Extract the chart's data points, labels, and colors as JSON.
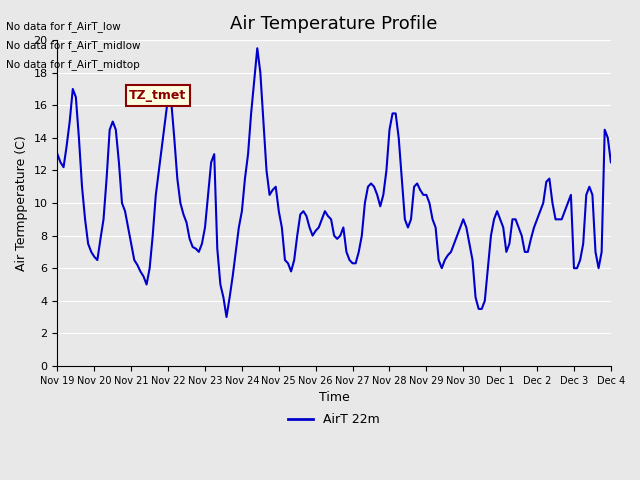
{
  "title": "Air Temperature Profile",
  "xlabel": "Time",
  "ylabel": "Air Termpperature (C)",
  "line_color": "#0000CC",
  "line_width": 1.5,
  "ylim": [
    0,
    20
  ],
  "yticks": [
    0,
    2,
    4,
    6,
    8,
    10,
    12,
    14,
    16,
    18,
    20
  ],
  "background_color": "#E8E8E8",
  "plot_bg_color": "#E8E8E8",
  "legend_label": "AirT 22m",
  "annotations_top": [
    "No data for f_AirT_low",
    "No data for f_AirT_midlow",
    "No data for f_AirT_midtop"
  ],
  "annotation_box_text": "TZ_tmet",
  "xtick_labels": [
    "Nov 19",
    "Nov 20",
    "Nov 21",
    "Nov 22",
    "Nov 23",
    "Nov 24",
    "Nov 25",
    "Nov 26",
    "Nov 27",
    "Nov 28",
    "Nov 29",
    "Nov 30",
    "Dec 1",
    "Dec 2",
    "Dec 3",
    "Dec 4"
  ],
  "x_values": [
    0,
    0.083,
    0.167,
    0.25,
    0.333,
    0.417,
    0.5,
    0.583,
    0.667,
    0.75,
    0.833,
    0.917,
    1.0,
    1.083,
    1.167,
    1.25,
    1.333,
    1.417,
    1.5,
    1.583,
    1.667,
    1.75,
    1.833,
    1.917,
    2.0,
    2.083,
    2.167,
    2.25,
    2.333,
    2.417,
    2.5,
    2.583,
    2.667,
    2.75,
    2.833,
    2.917,
    3.0,
    3.083,
    3.167,
    3.25,
    3.333,
    3.417,
    3.5,
    3.583,
    3.667,
    3.75,
    3.833,
    3.917,
    4.0,
    4.083,
    4.167,
    4.25,
    4.333,
    4.417,
    4.5,
    4.583,
    4.667,
    4.75,
    4.833,
    4.917,
    5.0,
    5.083,
    5.167,
    5.25,
    5.333,
    5.417,
    5.5,
    5.583,
    5.667,
    5.75,
    5.833,
    5.917,
    6.0,
    6.083,
    6.167,
    6.25,
    6.333,
    6.417,
    6.5,
    6.583,
    6.667,
    6.75,
    6.833,
    6.917,
    7.0,
    7.083,
    7.167,
    7.25,
    7.333,
    7.417,
    7.5,
    7.583,
    7.667,
    7.75,
    7.833,
    7.917,
    8.0,
    8.083,
    8.167,
    8.25,
    8.333,
    8.417,
    8.5,
    8.583,
    8.667,
    8.75,
    8.833,
    8.917,
    9.0,
    9.083,
    9.167,
    9.25,
    9.333,
    9.417,
    9.5,
    9.583,
    9.667,
    9.75,
    9.833,
    9.917,
    10.0,
    10.083,
    10.167,
    10.25,
    10.333,
    10.417,
    10.5,
    10.583,
    10.667,
    10.75,
    10.833,
    10.917,
    11.0,
    11.083,
    11.167,
    11.25,
    11.333,
    11.417,
    11.5,
    11.583,
    11.667,
    11.75,
    11.833,
    11.917,
    12.0,
    12.083,
    12.167,
    12.25,
    12.333,
    12.417,
    12.5,
    12.583,
    12.667,
    12.75,
    12.833,
    12.917,
    13.0,
    13.083,
    13.167,
    13.25,
    13.333,
    13.417,
    13.5,
    13.583,
    13.667,
    13.75,
    13.833,
    13.917,
    14.0,
    14.083,
    14.167,
    14.25,
    14.333,
    14.417,
    14.5,
    14.583,
    14.667,
    14.75,
    14.833,
    14.917,
    15.0
  ],
  "y_values": [
    13.0,
    12.5,
    12.2,
    13.5,
    15.0,
    17.0,
    16.5,
    14.0,
    11.0,
    9.0,
    7.5,
    7.0,
    6.7,
    6.5,
    7.8,
    9.0,
    11.5,
    14.5,
    15.0,
    14.5,
    12.5,
    10.0,
    9.5,
    8.5,
    7.5,
    6.5,
    6.2,
    5.8,
    5.5,
    5.0,
    6.0,
    8.0,
    10.5,
    12.0,
    13.5,
    15.0,
    16.5,
    16.3,
    14.0,
    11.5,
    10.0,
    9.3,
    8.8,
    7.8,
    7.3,
    7.2,
    7.0,
    7.5,
    8.5,
    10.5,
    12.5,
    13.0,
    7.2,
    5.0,
    4.2,
    3.0,
    4.2,
    5.5,
    7.0,
    8.5,
    9.5,
    11.5,
    13.0,
    15.5,
    17.5,
    19.5,
    18.0,
    15.0,
    12.0,
    10.5,
    10.8,
    11.0,
    9.5,
    8.5,
    6.5,
    6.3,
    5.8,
    6.5,
    8.0,
    9.3,
    9.5,
    9.2,
    8.5,
    8.0,
    8.3,
    8.5,
    9.0,
    9.5,
    9.2,
    9.0,
    8.0,
    7.8,
    8.0,
    8.5,
    7.0,
    6.5,
    6.3,
    6.3,
    7.0,
    8.0,
    10.0,
    11.0,
    11.2,
    11.0,
    10.5,
    9.8,
    10.5,
    12.0,
    14.5,
    15.5,
    15.5,
    14.0,
    11.5,
    9.0,
    8.5,
    9.0,
    11.0,
    11.2,
    10.8,
    10.5,
    10.5,
    10.0,
    9.0,
    8.5,
    6.5,
    6.0,
    6.5,
    6.8,
    7.0,
    7.5,
    8.0,
    8.5,
    9.0,
    8.5,
    7.5,
    6.5,
    4.2,
    3.5,
    3.5,
    4.0,
    6.0,
    8.0,
    9.0,
    9.5,
    9.0,
    8.5,
    7.0,
    7.5,
    9.0,
    9.0,
    8.5,
    8.0,
    7.0,
    7.0,
    7.8,
    8.5,
    9.0,
    9.5,
    10.0,
    11.3,
    11.5,
    10.0,
    9.0,
    9.0,
    9.0,
    9.5,
    10.0,
    10.5,
    6.0,
    6.0,
    6.5,
    7.5,
    10.5,
    11.0,
    10.5,
    7.0,
    6.0,
    7.0,
    14.5,
    14.0,
    12.5
  ]
}
